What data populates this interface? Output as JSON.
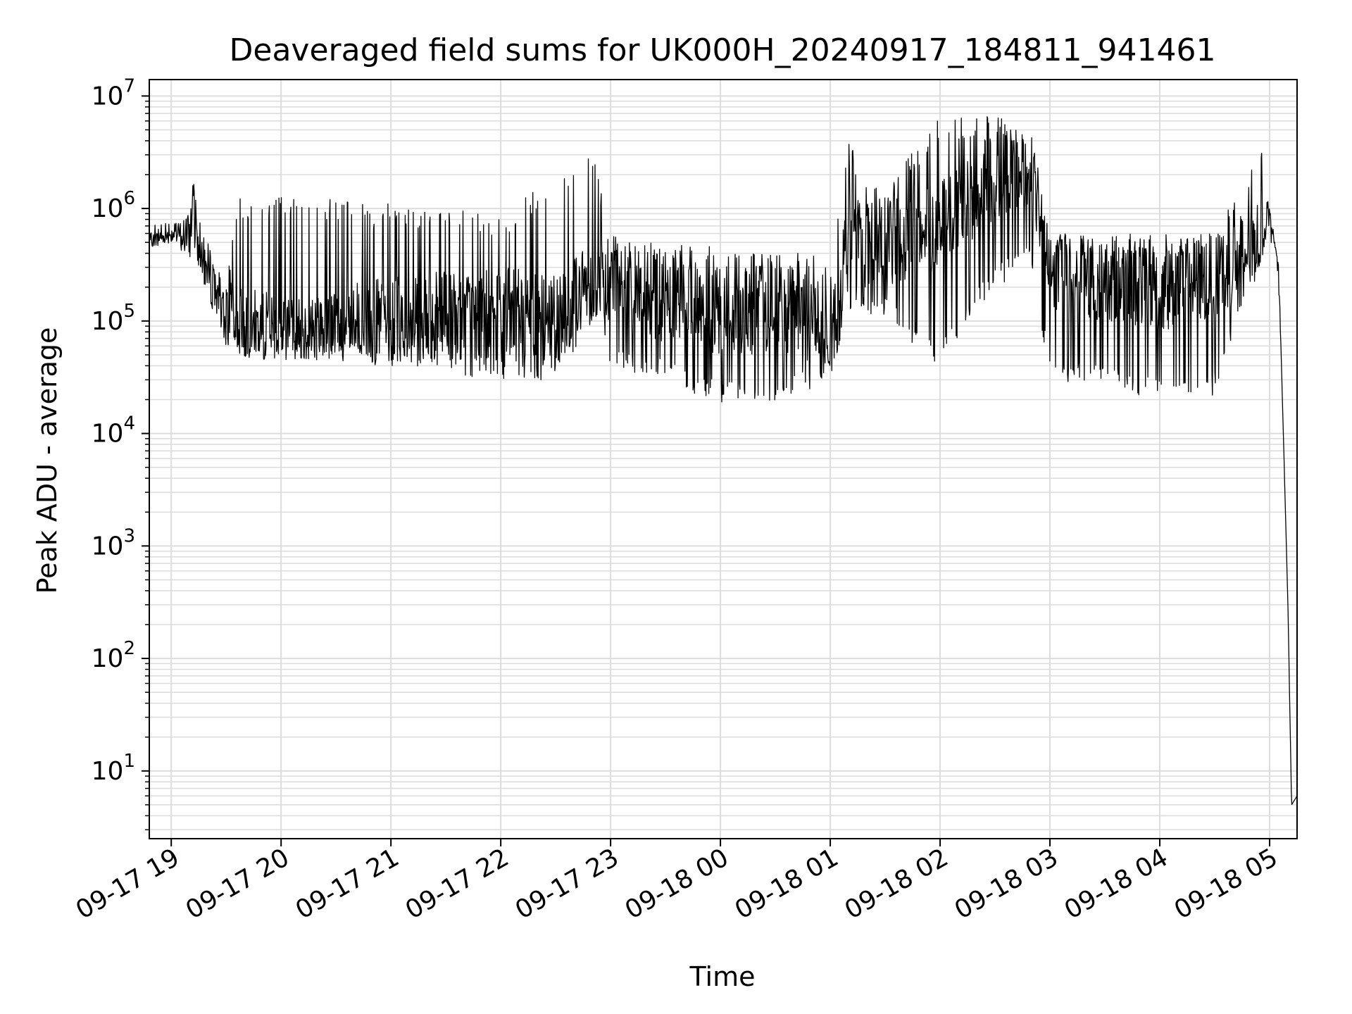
{
  "chart_data": {
    "type": "line",
    "title": "Deaveraged field sums for UK000H_20240917_184811_941461",
    "xlabel": "Time",
    "ylabel": "Peak ADU - average",
    "yscale": "log",
    "ylim": [
      2.5,
      14000000
    ],
    "xlim": [
      "09-17 18:48",
      "09-18 05:15"
    ],
    "x_ticks": [
      "09-17 19",
      "09-17 20",
      "09-17 21",
      "09-17 22",
      "09-17 23",
      "09-18 00",
      "09-18 01",
      "09-18 02",
      "09-18 03",
      "09-18 04",
      "09-18 05"
    ],
    "y_ticks": [
      {
        "value": 10,
        "base": "10",
        "exp": "1"
      },
      {
        "value": 100,
        "base": "10",
        "exp": "2"
      },
      {
        "value": 1000,
        "base": "10",
        "exp": "3"
      },
      {
        "value": 10000,
        "base": "10",
        "exp": "4"
      },
      {
        "value": 100000,
        "base": "10",
        "exp": "5"
      },
      {
        "value": 1000000,
        "base": "10",
        "exp": "6"
      },
      {
        "value": 10000000,
        "base": "10",
        "exp": "7"
      }
    ],
    "grid": true,
    "line_color": "#000000",
    "grid_color": "#dddddd",
    "series": [
      {
        "x": [
          "09-17 18:48",
          "09-17 19:00",
          "09-17 19:10",
          "09-17 19:13",
          "09-17 19:15",
          "09-17 19:20",
          "09-17 19:25",
          "09-17 19:30",
          "09-17 19:35",
          "09-17 19:40",
          "09-17 19:50",
          "09-17 20:00",
          "09-17 20:10",
          "09-17 20:20",
          "09-17 20:30",
          "09-17 20:45",
          "09-17 21:00",
          "09-17 21:30",
          "09-17 22:00",
          "09-17 22:30",
          "09-17 22:50",
          "09-17 23:00",
          "09-17 23:30",
          "09-18 00:00",
          "09-18 00:30",
          "09-18 01:00",
          "09-18 01:10",
          "09-18 01:30",
          "09-18 02:00",
          "09-18 02:30",
          "09-18 02:50",
          "09-18 03:00",
          "09-18 03:30",
          "09-18 04:00",
          "09-18 04:30",
          "09-18 04:55",
          "09-18 05:00",
          "09-18 05:05",
          "09-18 05:08",
          "09-18 05:10",
          "09-18 05:12",
          "09-18 05:15"
        ],
        "y": [
          500000,
          600000,
          800000,
          2800000,
          700000,
          400000,
          250000,
          150000,
          90000,
          80000,
          75000,
          70000,
          65000,
          70000,
          80000,
          90000,
          100000,
          110000,
          120000,
          120000,
          200000,
          250000,
          150000,
          120000,
          130000,
          100000,
          500000,
          500000,
          700000,
          2000000,
          2500000,
          300000,
          250000,
          200000,
          250000,
          500000,
          1000000,
          300000,
          5000,
          300,
          5,
          6
        ],
        "max": [
          600000,
          700000,
          900000,
          2800000,
          800000,
          500000,
          300000,
          200000,
          1300000,
          1300000,
          1400000,
          1400000,
          1300000,
          1300000,
          1200000,
          1100000,
          1100000,
          1000000,
          900000,
          2000000,
          3600000,
          600000,
          500000,
          450000,
          400000,
          400000,
          3800000,
          1500000,
          7000000,
          6800000,
          4800000,
          600000,
          600000,
          600000,
          600000,
          3700000,
          1000000,
          300000,
          5000,
          300,
          5,
          6
        ],
        "min": [
          450000,
          500000,
          350000,
          400000,
          300000,
          150000,
          100000,
          60000,
          50000,
          45000,
          45000,
          45000,
          45000,
          45000,
          45000,
          40000,
          40000,
          35000,
          28000,
          30000,
          100000,
          40000,
          28000,
          18000,
          18000,
          30000,
          120000,
          100000,
          40000,
          200000,
          300000,
          30000,
          25000,
          20000,
          22000,
          300000,
          800000,
          300000,
          5000,
          300,
          5,
          6
        ]
      }
    ]
  }
}
